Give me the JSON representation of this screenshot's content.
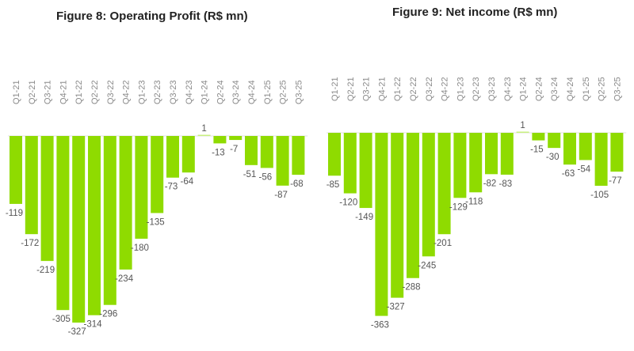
{
  "chart_data": [
    {
      "type": "bar",
      "title": "Figure 8: Operating Profit (R$ mn)",
      "xlabel": "",
      "ylabel": "",
      "categories": [
        "Q1-21",
        "Q2-21",
        "Q3-21",
        "Q4-21",
        "Q1-22",
        "Q2-22",
        "Q3-22",
        "Q4-22",
        "Q1-23",
        "Q2-23",
        "Q3-23",
        "Q4-23",
        "Q1-24",
        "Q2-24",
        "Q3-24",
        "Q4-24",
        "Q1-25",
        "Q2-25",
        "Q3-25"
      ],
      "values": [
        -119,
        -172,
        -219,
        -305,
        -327,
        -314,
        -296,
        -234,
        -180,
        -135,
        -73,
        -64,
        1,
        -13,
        -7,
        -51,
        -56,
        -87,
        -68
      ],
      "value_labels": [
        "-119",
        "-172",
        "-219",
        "-305",
        "-327",
        "-314",
        "-296",
        "-234",
        "-180",
        "-135",
        "-73",
        "-64",
        "1",
        "-13",
        "-7",
        "-51",
        "-56",
        "-87",
        "-68"
      ],
      "ylim": [
        -340,
        10
      ],
      "grid": false,
      "legend": "none",
      "bar_color": "#8fdb00"
    },
    {
      "type": "bar",
      "title": "Figure 9: Net income (R$ mn)",
      "xlabel": "",
      "ylabel": "",
      "categories": [
        "Q1-21",
        "Q2-21",
        "Q3-21",
        "Q4-21",
        "Q1-22",
        "Q2-22",
        "Q3-22",
        "Q4-22",
        "Q1-23",
        "Q2-23",
        "Q3-23",
        "Q4-23",
        "Q1-24",
        "Q2-24",
        "Q3-24",
        "Q4-24",
        "Q1-25",
        "Q2-25",
        "Q3-25"
      ],
      "values": [
        -85,
        -120,
        -149,
        -363,
        -327,
        -288,
        -245,
        -201,
        -129,
        -118,
        -82,
        -83,
        1,
        -15,
        -30,
        -63,
        -54,
        -105,
        -77
      ],
      "value_labels": [
        "-85",
        "-120",
        "-149",
        "-363",
        "-327",
        "-288",
        "-245",
        "-201",
        "-129",
        "-118",
        "-82",
        "-83",
        "1",
        "-15",
        "-30",
        "-63",
        "-54",
        "-105",
        "-77"
      ],
      "ylim": [
        -380,
        10
      ],
      "grid": false,
      "legend": "none",
      "bar_color": "#8fdb00"
    }
  ]
}
